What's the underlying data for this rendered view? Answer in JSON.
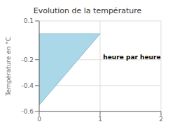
{
  "chart_data": {
    "type": "area",
    "title": "Evolution de la température",
    "ylabel": "Température en °C",
    "xlim": [
      0,
      2
    ],
    "ylim": [
      -0.6,
      0.1
    ],
    "xticks": [
      0,
      1,
      2
    ],
    "yticks": [
      0.1,
      -0.2,
      -0.4,
      -0.6
    ],
    "grid": true,
    "series": [
      {
        "type": "area",
        "x": [
          0,
          0,
          1
        ],
        "values": [
          0.0,
          -0.55,
          0.0
        ],
        "color": "#aad8e8"
      },
      {
        "type": "line",
        "x": [
          0,
          0,
          1,
          0
        ],
        "values": [
          0.0,
          -0.55,
          0.0,
          0.0
        ],
        "color": "#88bbcc"
      }
    ],
    "annotations": [
      {
        "text": "heure par heure",
        "x": 1.05,
        "y": -0.18
      }
    ]
  }
}
